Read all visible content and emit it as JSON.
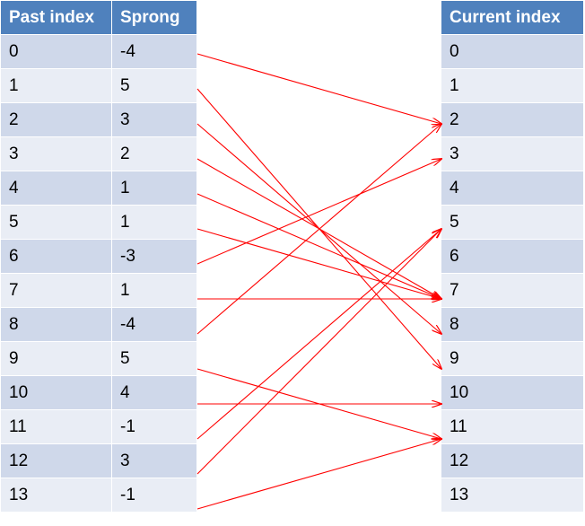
{
  "left_table": {
    "header_past": "Past index",
    "header_sprong": "Sprong",
    "rows": [
      {
        "past": "0",
        "sprong": "-4"
      },
      {
        "past": "1",
        "sprong": "5"
      },
      {
        "past": "2",
        "sprong": "3"
      },
      {
        "past": "3",
        "sprong": "2"
      },
      {
        "past": "4",
        "sprong": "1"
      },
      {
        "past": "5",
        "sprong": "1"
      },
      {
        "past": "6",
        "sprong": "-3"
      },
      {
        "past": "7",
        "sprong": "1"
      },
      {
        "past": "8",
        "sprong": "-4"
      },
      {
        "past": "9",
        "sprong": "5"
      },
      {
        "past": "10",
        "sprong": "4"
      },
      {
        "past": "11",
        "sprong": "-1"
      },
      {
        "past": "12",
        "sprong": "3"
      },
      {
        "past": "13",
        "sprong": "-1"
      }
    ]
  },
  "right_table": {
    "header_current": "Current index",
    "rows": [
      "0",
      "1",
      "2",
      "3",
      "4",
      "5",
      "6",
      "7",
      "8",
      "9",
      "10",
      "11",
      "12",
      "13"
    ]
  },
  "mappings": [
    {
      "from": 0,
      "to": 2
    },
    {
      "from": 1,
      "to": 9
    },
    {
      "from": 2,
      "to": 8
    },
    {
      "from": 3,
      "to": 7
    },
    {
      "from": 4,
      "to": 7
    },
    {
      "from": 5,
      "to": 7
    },
    {
      "from": 6,
      "to": 3
    },
    {
      "from": 7,
      "to": 7
    },
    {
      "from": 8,
      "to": 2
    },
    {
      "from": 9,
      "to": 11
    },
    {
      "from": 10,
      "to": 10
    },
    {
      "from": 11,
      "to": 5
    },
    {
      "from": 12,
      "to": 5
    },
    {
      "from": 13,
      "to": 11
    }
  ],
  "colors": {
    "header": "#4f81bd",
    "row_odd": "#cfd8ea",
    "row_even": "#e9edf5",
    "arrow": "#ff0000"
  }
}
